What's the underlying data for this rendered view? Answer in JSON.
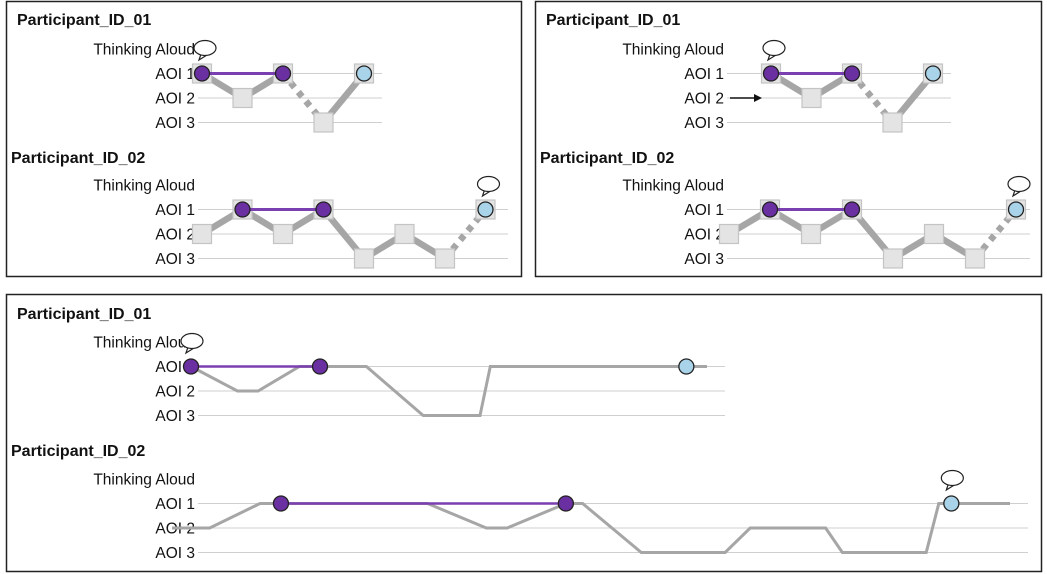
{
  "row_labels": [
    "Thinking Aloud",
    "AOI 1",
    "AOI 2",
    "AOI 3"
  ],
  "colors": {
    "fixation_dark": "#6a2fa0",
    "fixation_light": "#a9d3e8",
    "aoi_square": "#e4e4e4",
    "path_gray": "#a6a6a6",
    "link_purple": "#7a3fb0",
    "grid": "#cfcfcf",
    "frame": "#222222"
  },
  "panels": [
    {
      "name": "top-left",
      "participants": [
        {
          "title": "Participant_ID_01",
          "sequence": [
            "AOI 1",
            "AOI 2",
            "AOI 1",
            "AOI 3",
            "AOI 1"
          ],
          "links": [
            [
              0,
              2
            ]
          ],
          "light": [
            4
          ],
          "dashed_into": [
            3
          ],
          "speech": [
            0
          ]
        },
        {
          "title": "Participant_ID_02",
          "sequence": [
            "AOI 2",
            "AOI 1",
            "AOI 2",
            "AOI 1",
            "AOI 3",
            "AOI 2",
            "AOI 3",
            "AOI 1"
          ],
          "links": [
            [
              1,
              3
            ]
          ],
          "light": [
            7
          ],
          "dashed_into": [
            7
          ],
          "speech": [
            7
          ]
        }
      ]
    },
    {
      "name": "top-right",
      "participants": [
        {
          "title": "Participant_ID_01",
          "sequence": [
            "AOI 1",
            "AOI 2",
            "AOI 1",
            "AOI 3",
            "AOI 1"
          ],
          "links": [
            [
              0,
              2
            ]
          ],
          "light": [
            4
          ],
          "dashed_into": [
            3
          ],
          "speech": [
            0
          ],
          "arrow_label": "AOI 2"
        },
        {
          "title": "Participant_ID_02",
          "sequence": [
            "AOI 2",
            "AOI 1",
            "AOI 2",
            "AOI 1",
            "AOI 3",
            "AOI 2",
            "AOI 3",
            "AOI 1"
          ],
          "links": [
            [
              1,
              3
            ]
          ],
          "light": [
            7
          ],
          "dashed_into": [
            7
          ],
          "speech": [
            7
          ]
        }
      ]
    },
    {
      "name": "bottom",
      "participants": [
        {
          "title": "Participant_ID_01",
          "timeline": [
            [
              "AOI 1",
              0
            ],
            [
              "AOI 2",
              0.09
            ],
            [
              "AOI 2",
              0.13
            ],
            [
              "AOI 1",
              0.21
            ],
            [
              "AOI 1",
              0.34
            ],
            [
              "AOI 3",
              0.45
            ],
            [
              "AOI 3",
              0.56
            ],
            [
              "AOI 1",
              0.58
            ],
            [
              "AOI 1",
              1.0
            ]
          ],
          "fixations": [
            [
              0.0,
              "dark"
            ],
            [
              0.25,
              "dark"
            ],
            [
              0.96,
              "light"
            ]
          ],
          "links": [
            [
              0,
              1
            ]
          ],
          "speech": [
            0
          ]
        },
        {
          "title": "Participant_ID_02",
          "timeline": [
            [
              "AOI 2",
              0
            ],
            [
              "AOI 2",
              0.045
            ],
            [
              "AOI 1",
              0.105
            ],
            [
              "AOI 1",
              0.305
            ],
            [
              "AOI 2",
              0.375
            ],
            [
              "AOI 2",
              0.4
            ],
            [
              "AOI 1",
              0.47
            ],
            [
              "AOI 1",
              0.49
            ],
            [
              "AOI 3",
              0.56
            ],
            [
              "AOI 3",
              0.66
            ],
            [
              "AOI 2",
              0.69
            ],
            [
              "AOI 2",
              0.78
            ],
            [
              "AOI 3",
              0.8
            ],
            [
              "AOI 3",
              0.9
            ],
            [
              "AOI 1",
              0.915
            ],
            [
              "AOI 1",
              1.0
            ]
          ],
          "fixations": [
            [
              0.13,
              "dark"
            ],
            [
              0.47,
              "dark"
            ],
            [
              0.93,
              "light"
            ]
          ],
          "links": [
            [
              0,
              1
            ]
          ],
          "speech": [
            2
          ]
        }
      ]
    }
  ]
}
